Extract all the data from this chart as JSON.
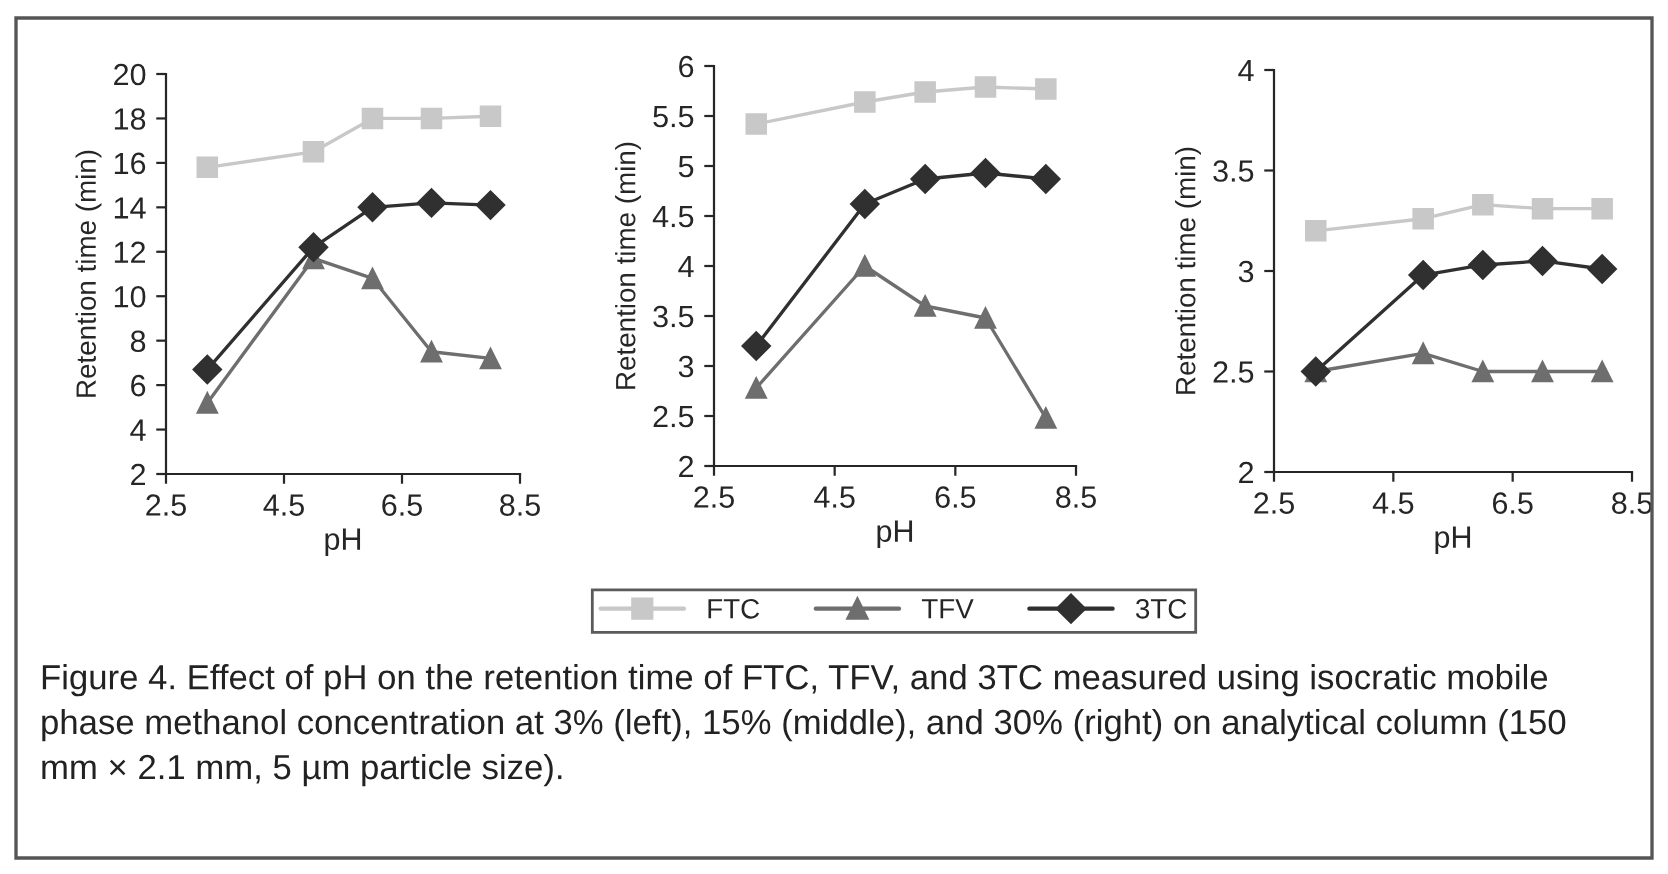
{
  "chart_data": [
    {
      "type": "line",
      "x": [
        3.2,
        5,
        6,
        7,
        8
      ],
      "xlabel": "pH",
      "ylabel": "Retention time (min)",
      "xlim": [
        2.5,
        8.5
      ],
      "xticks": [
        2.5,
        4.5,
        6.5,
        8.5
      ],
      "ylim": [
        2,
        20
      ],
      "yticks": [
        2,
        4,
        6,
        8,
        10,
        12,
        14,
        16,
        18,
        20
      ],
      "series": [
        {
          "name": "FTC",
          "color": "#c8c8c8",
          "marker": "square",
          "values": [
            15.8,
            16.5,
            18,
            18,
            18.1
          ]
        },
        {
          "name": "TFV",
          "color": "#6e6e6e",
          "marker": "triangle",
          "values": [
            5.2,
            11.7,
            10.8,
            7.5,
            7.2
          ]
        },
        {
          "name": "3TC",
          "color": "#303030",
          "marker": "diamond",
          "values": [
            6.7,
            12.2,
            14,
            14.2,
            14.1
          ]
        }
      ],
      "legend": "bottom",
      "annotations": [
        "Figure 4. Effect of pH on the retention time of FTC, TFV, and 3TC measured using isocratic mobile phase methanol concentration at 3% (left), 15% (middle), and 30% (right) on analytical column (150 mm × 2.1 mm, 5 µm particle size)."
      ]
    },
    {
      "type": "line",
      "x": [
        3.2,
        5,
        6,
        7,
        8
      ],
      "xlabel": "pH",
      "ylabel": "Retention time (min)",
      "xlim": [
        2.5,
        8.5
      ],
      "xticks": [
        2.5,
        4.5,
        6.5,
        8.5
      ],
      "ylim": [
        2,
        6
      ],
      "yticks": [
        2,
        2.5,
        3,
        3.5,
        4,
        4.5,
        5,
        5.5,
        6
      ],
      "series": [
        {
          "color": "#c8c8c8",
          "marker": "square",
          "values": [
            5.42,
            5.64,
            5.74,
            5.79,
            5.77
          ]
        },
        {
          "color": "#6e6e6e",
          "marker": "triangle",
          "values": [
            2.78,
            4.0,
            3.6,
            3.48,
            2.48
          ]
        },
        {
          "color": "#303030",
          "marker": "diamond",
          "values": [
            3.2,
            4.62,
            4.87,
            4.93,
            4.87
          ]
        }
      ]
    },
    {
      "type": "line",
      "x": [
        3.2,
        5,
        6,
        7,
        8
      ],
      "xlabel": "pH",
      "ylabel": "Retention time (min)",
      "xlim": [
        2.5,
        8.5
      ],
      "xticks": [
        2.5,
        4.5,
        6.5,
        8.5
      ],
      "ylim": [
        2,
        4
      ],
      "yticks": [
        2,
        2.5,
        3,
        3.5,
        4
      ],
      "series": [
        {
          "color": "#c8c8c8",
          "marker": "square",
          "values": [
            3.2,
            3.26,
            3.33,
            3.31,
            3.31
          ]
        },
        {
          "color": "#6e6e6e",
          "marker": "triangle",
          "values": [
            2.5,
            2.59,
            2.5,
            2.5,
            2.5
          ]
        },
        {
          "color": "#303030",
          "marker": "diamond",
          "values": [
            2.5,
            2.98,
            3.03,
            3.05,
            3.01
          ]
        }
      ]
    }
  ]
}
